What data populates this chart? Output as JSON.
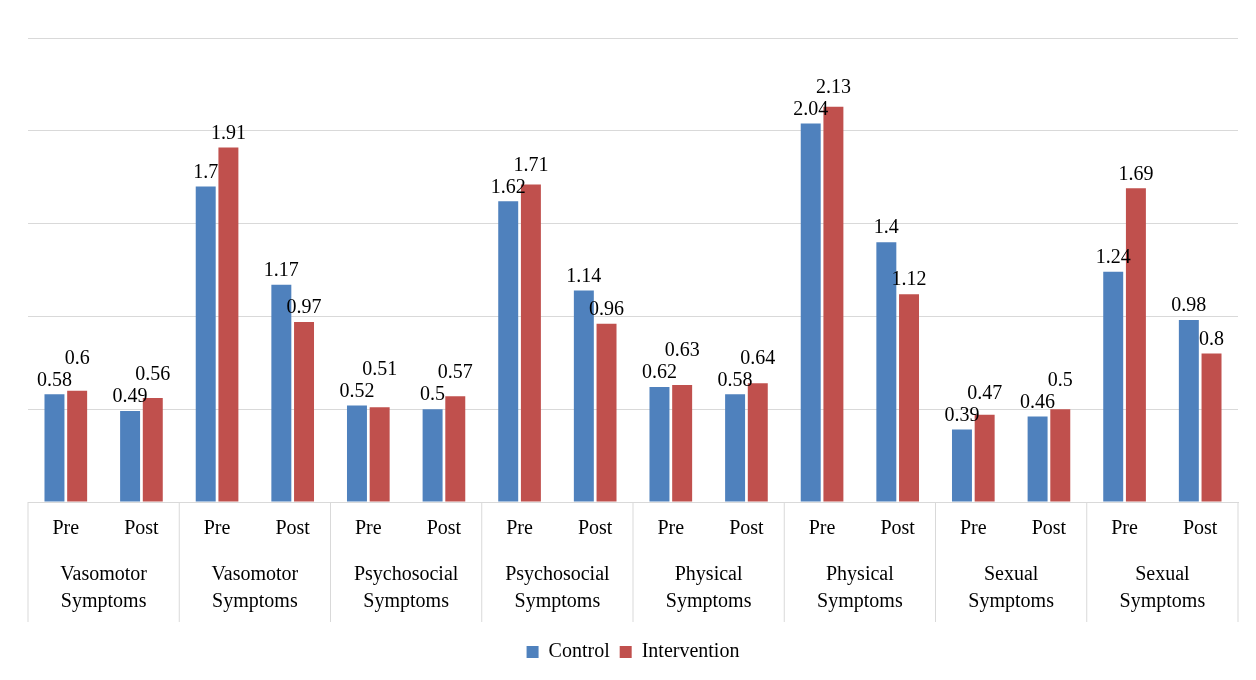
{
  "chart_data": {
    "type": "bar",
    "categories": [
      "Pre",
      "Post",
      "Pre",
      "Post",
      "Pre",
      "Post",
      "Pre",
      "Post",
      "Pre",
      "Post",
      "Pre",
      "Post",
      "Pre",
      "Post",
      "Pre",
      "Post"
    ],
    "series": [
      {
        "name": "Control",
        "color": "#4f81bd",
        "values": [
          0.58,
          0.49,
          1.7,
          1.17,
          0.52,
          0.5,
          1.62,
          1.14,
          0.62,
          0.58,
          2.04,
          1.4,
          0.39,
          0.46,
          1.24,
          0.98
        ]
      },
      {
        "name": "Intervention",
        "color": "#c0504d",
        "values": [
          0.6,
          0.56,
          1.91,
          0.97,
          0.51,
          0.57,
          1.71,
          0.96,
          0.63,
          0.64,
          2.13,
          1.12,
          0.47,
          0.5,
          1.69,
          0.8
        ]
      }
    ],
    "annotations": [
      "Vasomotor Symptoms",
      "Vasomotor Symptoms",
      "Psychosocial Symptoms",
      "Psychosocial Symptoms",
      "Physical Symptoms",
      "Physical Symptoms",
      "Sexual Symptoms",
      "Sexual Symptoms"
    ],
    "ylim": [
      0,
      2.5
    ],
    "yticks": [
      0,
      0.5,
      1,
      1.5,
      2,
      2.5
    ],
    "grid": "y",
    "tick_labels": "x",
    "data_labels": true,
    "legend": "bottom"
  }
}
